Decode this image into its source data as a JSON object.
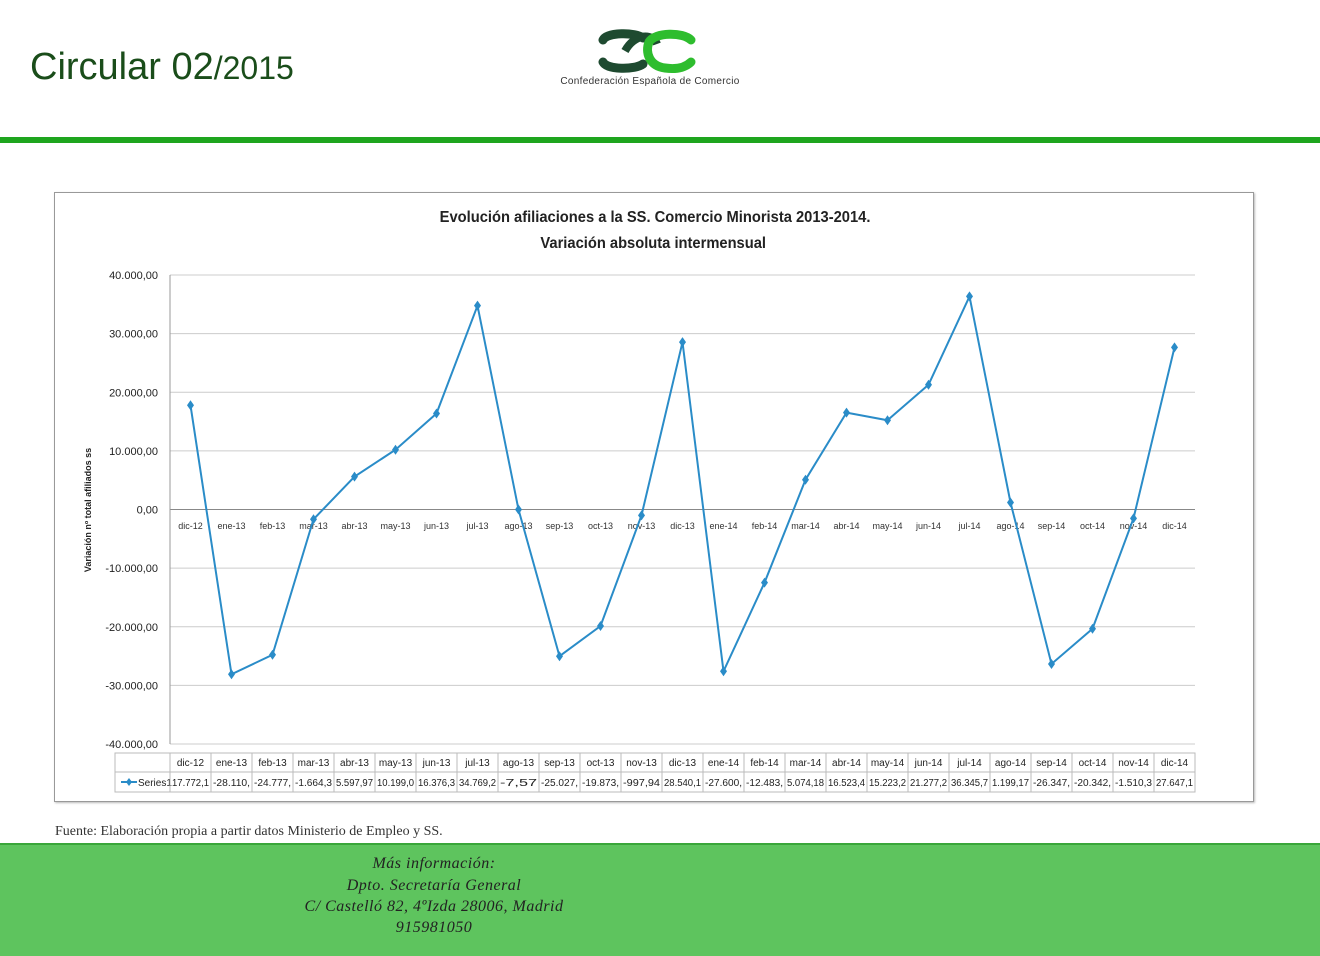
{
  "header": {
    "circular_label": "Circular 02",
    "circular_year": "/2015",
    "logo_text": "Confederación Española de Comercio"
  },
  "colors": {
    "line": "#2a8cc8",
    "green_bar": "#1ea51e",
    "footer": "#5ec45e"
  },
  "chart_data": {
    "type": "line",
    "title": "Evolución afiliaciones a la SS. Comercio Minorista 2013-2014.",
    "subtitle": "Variación absoluta intermensual",
    "ylabel": "Variación nº total afiliados ss",
    "ylim": [
      -40000,
      40000
    ],
    "yticks": [
      "40.000,00",
      "30.000,00",
      "20.000,00",
      "10.000,00",
      "0,00",
      "-10.000,00",
      "-20.000,00",
      "-30.000,00",
      "-40.000,00"
    ],
    "grid": true,
    "categories": [
      "dic-12",
      "ene-13",
      "feb-13",
      "mar-13",
      "abr-13",
      "may-13",
      "jun-13",
      "jul-13",
      "ago-13",
      "sep-13",
      "oct-13",
      "nov-13",
      "dic-13",
      "ene-14",
      "feb-14",
      "mar-14",
      "abr-14",
      "may-14",
      "jun-14",
      "jul-14",
      "ago-14",
      "sep-14",
      "oct-14",
      "nov-14",
      "dic-14"
    ],
    "series": [
      {
        "name": "Series1",
        "values": [
          17772.1,
          -28110,
          -24777,
          -1664.3,
          5597.97,
          10199.0,
          16376.3,
          34769.2,
          -7.57,
          -25027,
          -19873,
          -997.94,
          28540.1,
          -27600,
          -12483,
          5074.18,
          16523.4,
          15223.2,
          21277.2,
          36345.7,
          1199.17,
          -26347,
          -20342,
          -1510.3,
          27647.1
        ],
        "table_labels": [
          "17.772,1",
          "-28.110,",
          "-24.777,",
          "-1.664,3",
          "5.597,97",
          "10.199,0",
          "16.376,3",
          "34.769,2",
          "-7,57",
          "-25.027,",
          "-19.873,",
          "-997,94",
          "28.540,1",
          "-27.600,",
          "-12.483,",
          "5.074,18",
          "16.523,4",
          "15.223,2",
          "21.277,2",
          "36.345,7",
          "1.199,17",
          "-26.347,",
          "-20.342,",
          "-1.510,3",
          "27.647,1"
        ]
      }
    ],
    "data_table": true
  },
  "source": "Fuente: Elaboración propia a partir datos Ministerio de Empleo y SS.",
  "footer": {
    "line1": "Más información:",
    "line2": "Dpto. Secretaría General",
    "line3": "C/ Castelló 82, 4ºIzda 28006, Madrid",
    "line4": "915981050"
  }
}
